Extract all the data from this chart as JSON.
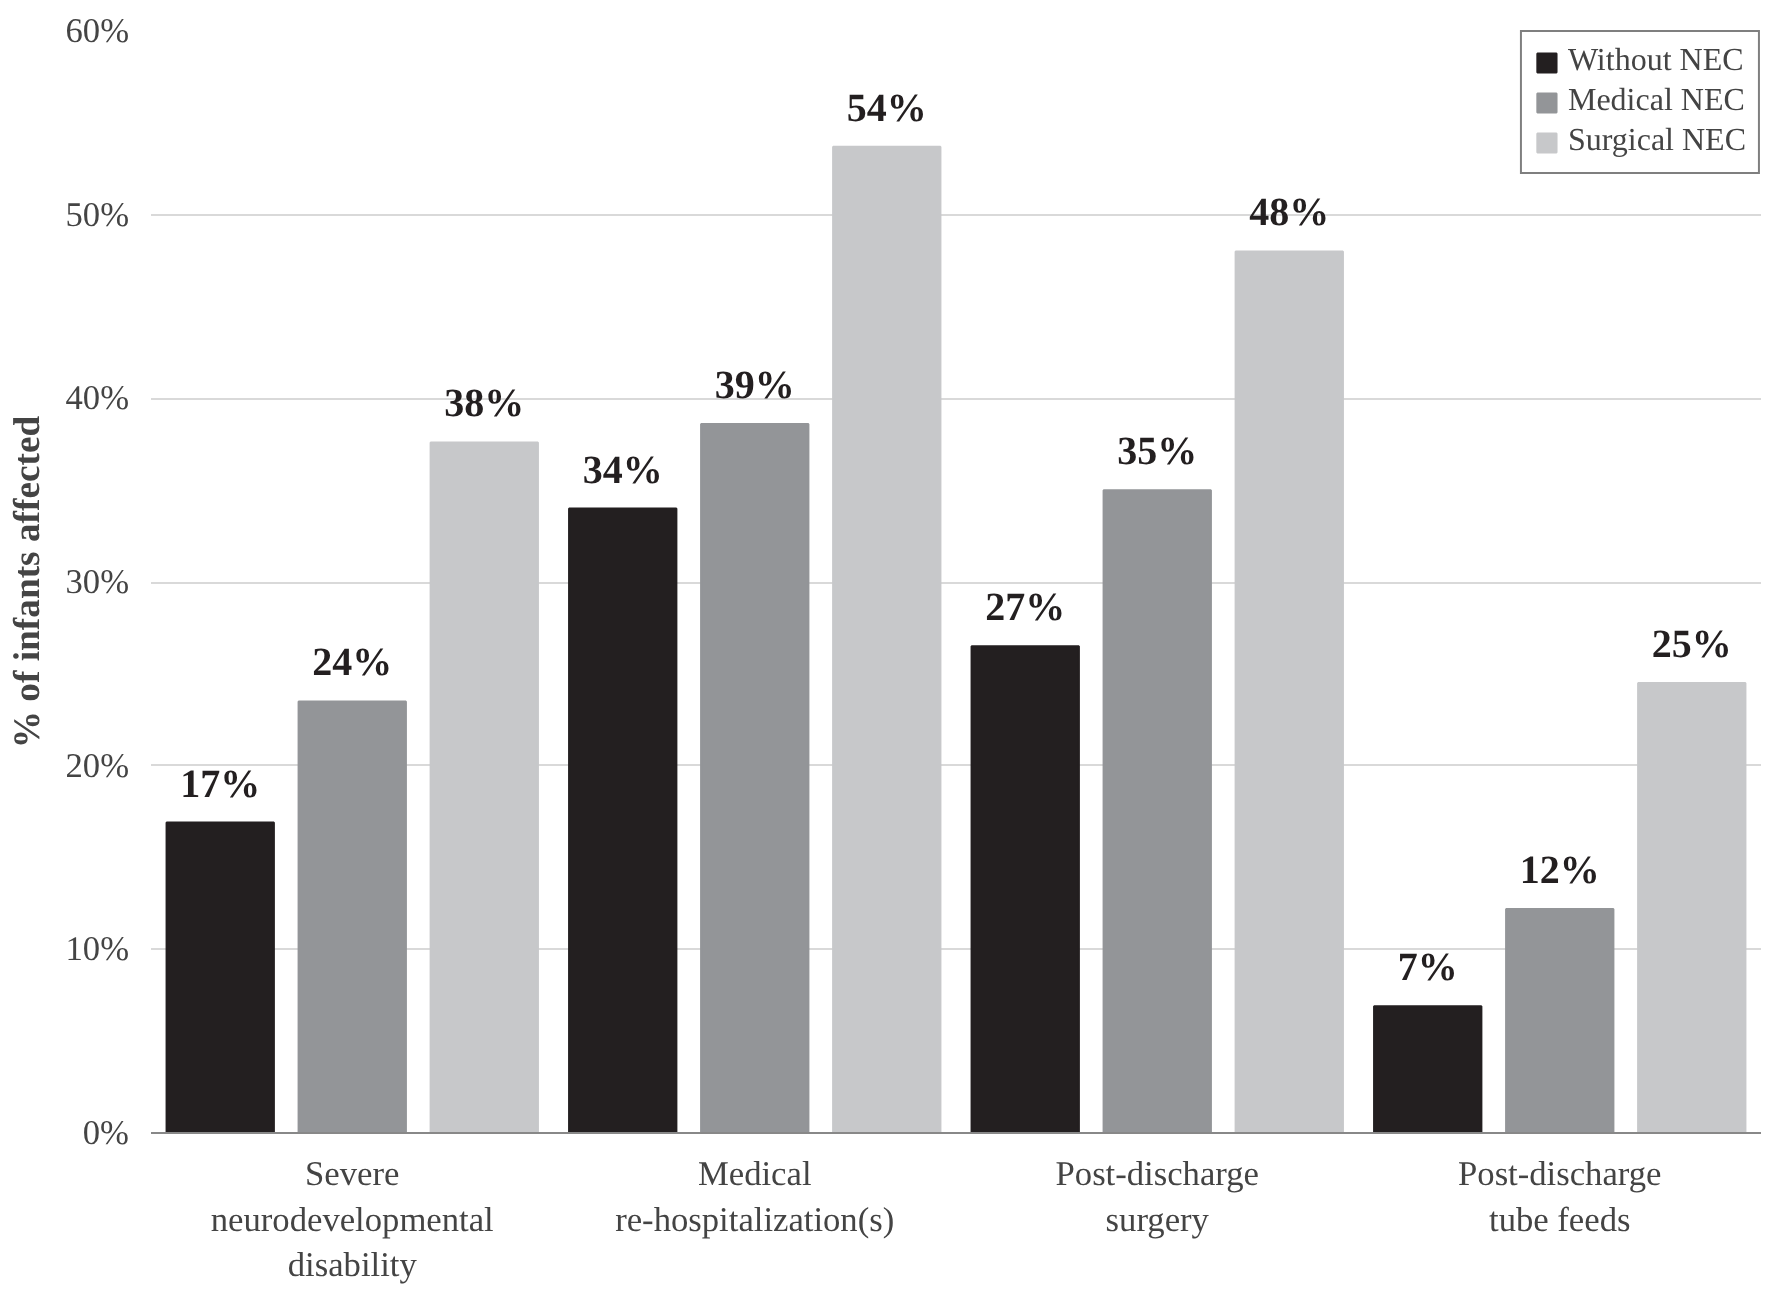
{
  "chart_data": {
    "type": "bar",
    "ylabel": "% of infants affected",
    "categories": [
      "Severe\nneurodevelopmental\ndisability",
      "Medical\nre-hospitalization(s)",
      "Post-discharge\nsurgery",
      "Post-discharge\ntube feeds"
    ],
    "series": [
      {
        "name": "Without NEC",
        "color": "#231f20",
        "values": [
          16.9,
          34.0,
          26.5,
          6.9
        ],
        "value_labels": [
          "17%",
          "34%",
          "27%",
          "7%"
        ]
      },
      {
        "name": "Medical NEC",
        "color": "#939598",
        "values": [
          23.5,
          38.6,
          35.0,
          12.2
        ],
        "value_labels": [
          "24%",
          "39%",
          "35%",
          "12%"
        ]
      },
      {
        "name": "Surgical NEC",
        "color": "#c7c8ca",
        "values": [
          37.6,
          53.7,
          48.0,
          24.5
        ],
        "value_labels": [
          "38%",
          "54%",
          "48%",
          "25%"
        ]
      }
    ],
    "ylim": [
      0,
      60
    ],
    "yticks": [
      {
        "value": 0,
        "label": "0%"
      },
      {
        "value": 10,
        "label": "10%"
      },
      {
        "value": 20,
        "label": "20%"
      },
      {
        "value": 30,
        "label": "30%"
      },
      {
        "value": 40,
        "label": "40%"
      },
      {
        "value": 50,
        "label": "50%"
      },
      {
        "value": 60,
        "label": "60%"
      }
    ],
    "grid": "y",
    "legend": "top right"
  }
}
